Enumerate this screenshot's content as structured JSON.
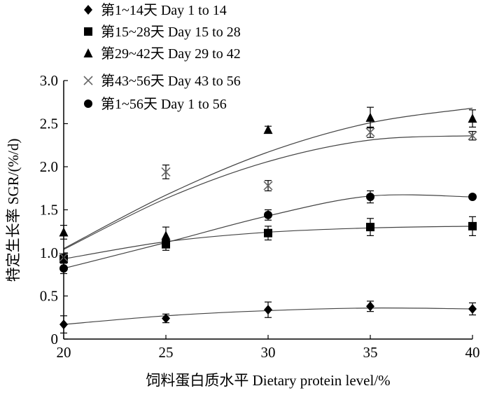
{
  "chart_data": {
    "type": "scatter",
    "xlabel": "饲料蛋白质水平 Dietary protein level/%",
    "ylabel": "特定生长率 SGR/(%/d)",
    "x": [
      20,
      25,
      30,
      35,
      40
    ],
    "xlim": [
      20,
      40
    ],
    "ylim": [
      0,
      3.0
    ],
    "x_ticks": [
      "20",
      "25",
      "30",
      "35",
      "40"
    ],
    "y_ticks": [
      "0",
      "0.5",
      "1.0",
      "1.5",
      "2.0",
      "2.5",
      "3.0"
    ],
    "grid": false,
    "legend_position": "top-left",
    "series": [
      {
        "name": "第1~14天  Day 1 to 14",
        "marker": "diamond",
        "values": [
          0.17,
          0.24,
          0.34,
          0.38,
          0.35
        ],
        "errors": [
          0.1,
          0.05,
          0.09,
          0.06,
          0.07
        ],
        "fit": [
          0.17,
          0.27,
          0.33,
          0.36,
          0.35
        ]
      },
      {
        "name": "第15~28天  Day 15 to 28",
        "marker": "square",
        "values": [
          0.93,
          1.1,
          1.23,
          1.3,
          1.31
        ],
        "errors": [
          0.05,
          0.07,
          0.08,
          0.1,
          0.11
        ],
        "fit": [
          0.93,
          1.13,
          1.24,
          1.29,
          1.31
        ]
      },
      {
        "name": "第29~42天  Day 29 to 42",
        "marker": "triangle",
        "values": [
          1.24,
          1.2,
          2.43,
          2.57,
          2.56
        ],
        "errors": [
          0.08,
          0.1,
          0.04,
          0.12,
          0.1
        ],
        "fit": [
          1.05,
          1.67,
          2.17,
          2.51,
          2.68
        ]
      },
      {
        "name": "第43~56天  Day 43 to 56",
        "marker": "x",
        "values": [
          0.95,
          1.94,
          1.78,
          2.4,
          2.36
        ],
        "errors": [
          0.04,
          0.08,
          0.06,
          0.06,
          0.05
        ],
        "fit": [
          1.04,
          1.63,
          2.06,
          2.31,
          2.36
        ]
      },
      {
        "name": "第1~56天  Day 1 to 56",
        "marker": "circle",
        "values": [
          0.82,
          1.12,
          1.44,
          1.65,
          1.65
        ],
        "errors": [
          0.06,
          0.05,
          0.06,
          0.07,
          0.02
        ],
        "fit": [
          0.82,
          1.12,
          1.43,
          1.66,
          1.65
        ]
      }
    ]
  }
}
